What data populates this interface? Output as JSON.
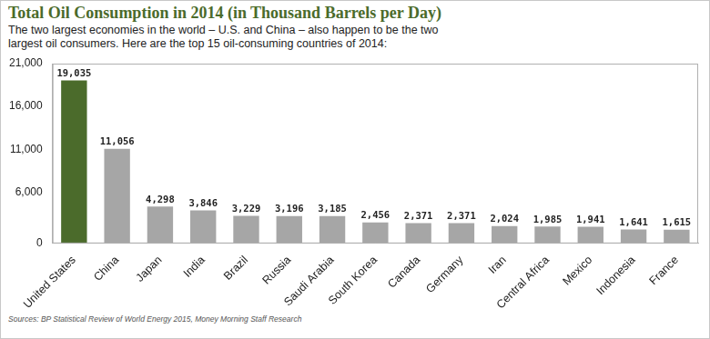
{
  "chart_data": {
    "type": "bar",
    "title": "Total Oil Consumption in 2014 (in Thousand Barrels per Day)",
    "subtitle": "The two largest economies in the world – U.S. and China – also happen to be the two largest oil consumers. Here are the top 15 oil-consuming countries of 2014:",
    "source": "Sources: BP Statistical Review of World Energy 2015, Money Morning Staff Research",
    "categories": [
      "United States",
      "China",
      "Japan",
      "India",
      "Brazil",
      "Russia",
      "Saudi Arabia",
      "South Korea",
      "Canada",
      "Germany",
      "Iran",
      "Central Africa",
      "Mexico",
      "Indonesia",
      "France"
    ],
    "values": [
      19035,
      11056,
      4298,
      3846,
      3229,
      3196,
      3185,
      2456,
      2371,
      2371,
      2024,
      1985,
      1941,
      1641,
      1615
    ],
    "value_labels": [
      "19,035",
      "11,056",
      "4,298",
      "3,846",
      "3,229",
      "3,196",
      "3,185",
      "2,456",
      "2,371",
      "2,371",
      "2,024",
      "1,985",
      "1,941",
      "1,641",
      "1,615"
    ],
    "colors": [
      "#4b6b2b",
      "#a6a6a6",
      "#a6a6a6",
      "#a6a6a6",
      "#a6a6a6",
      "#a6a6a6",
      "#a6a6a6",
      "#a6a6a6",
      "#a6a6a6",
      "#a6a6a6",
      "#a6a6a6",
      "#a6a6a6",
      "#a6a6a6",
      "#a6a6a6",
      "#a6a6a6"
    ],
    "ylim": [
      0,
      21000
    ],
    "yticks": [
      0,
      {
        "value": 6000,
        "label": "6,000"
      },
      {
        "value": 11000,
        "label": "11,000"
      },
      {
        "value": 16000,
        "label": "16,000"
      },
      {
        "value": 21000,
        "label": "21,000"
      }
    ],
    "grid": false,
    "data_labels": true
  }
}
